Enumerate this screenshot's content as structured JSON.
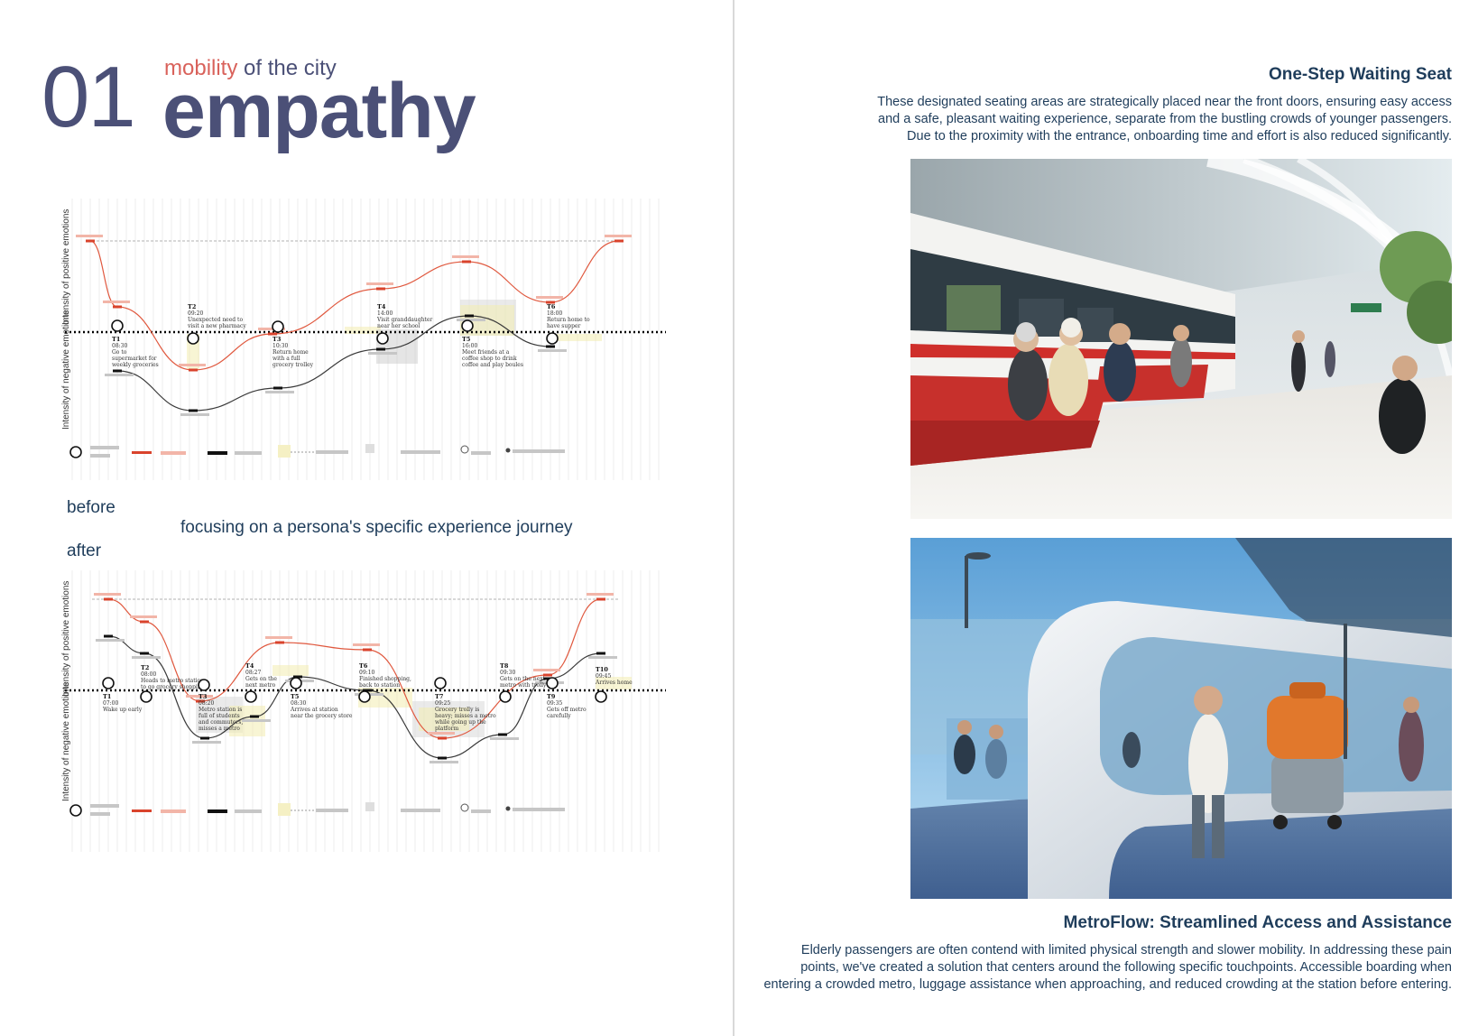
{
  "header": {
    "number": "01",
    "subtitle_highlight": "mobility",
    "subtitle_rest": " of the city",
    "title": "empathy"
  },
  "chart_labels": {
    "y_axis_positive": "Intensity of positive emotions",
    "y_axis_negative": "Intensity of negative emotions",
    "before": "before",
    "focus": "focusing on a persona's specific experience journey",
    "after": "after"
  },
  "chart_data": [
    {
      "type": "line",
      "name": "before",
      "touchpoints": [
        {
          "id": "T1",
          "time": "08:30",
          "text": [
            "Go to",
            "supermarket for",
            "weekly groceries"
          ]
        },
        {
          "id": "T2",
          "time": "09:20",
          "text": [
            "Unexpected need to",
            "visit a new pharmacy"
          ]
        },
        {
          "id": "T3",
          "time": "10:30",
          "text": [
            "Return home",
            "with a full",
            "grocery trolley"
          ]
        },
        {
          "id": "T4",
          "time": "14:00",
          "text": [
            "Visit granddaughter",
            "near her school"
          ]
        },
        {
          "id": "T5",
          "time": "16:00",
          "text": [
            "Meet friends at a",
            "coffee shop to drink",
            "coffee and play boules"
          ]
        },
        {
          "id": "T6",
          "time": "18:00",
          "text": [
            "Return home to",
            "have supper"
          ]
        }
      ]
    },
    {
      "type": "line",
      "name": "after",
      "touchpoints": [
        {
          "id": "T1",
          "time": "07:00",
          "text": [
            "Wake up early"
          ]
        },
        {
          "id": "T2",
          "time": "08:00",
          "text": [
            "Heads to metro station",
            "to go grocery shopping"
          ]
        },
        {
          "id": "T3",
          "time": "08:20",
          "text": [
            "Metro station is",
            "full of students",
            "and commuters,",
            "misses a metro"
          ]
        },
        {
          "id": "T4",
          "time": "08:27",
          "text": [
            "Gets on the",
            "next metro"
          ]
        },
        {
          "id": "T5",
          "time": "08:30",
          "text": [
            "Arrives at station",
            "near the grocery store"
          ]
        },
        {
          "id": "T6",
          "time": "09:10",
          "text": [
            "Finished shopping,",
            "back to station"
          ]
        },
        {
          "id": "T7",
          "time": "09:25",
          "text": [
            "Grocery trolly is",
            "heavy; misses a metro",
            "while going up the",
            "platform"
          ]
        },
        {
          "id": "T8",
          "time": "09:30",
          "text": [
            "Gets on the next",
            "metro with trolly"
          ]
        },
        {
          "id": "T9",
          "time": "09:35",
          "text": [
            "Gets off metro",
            "carefully"
          ]
        },
        {
          "id": "T10",
          "time": "09:45",
          "text": [
            "Arrives home"
          ]
        }
      ]
    }
  ],
  "features": [
    {
      "title": "One-Step Waiting Seat",
      "lines": [
        "These designated seating areas are strategically placed near the front doors, ensuring easy access",
        "and a safe, pleasant waiting experience, separate from the bustling crowds of younger passengers.",
        "Due to the proximity with the entrance, onboarding time and effort is also reduced significantly."
      ]
    },
    {
      "title": "MetroFlow: Streamlined Access and Assistance",
      "lines": [
        "Elderly passengers are often contend with limited physical strength and slower mobility. In addressing these pain",
        "points, we've created a solution that centers around the following specific touchpoints. Accessible boarding when",
        "entering a crowded metro, luggage assistance when approaching, and reduced crowding at the station before entering."
      ]
    }
  ],
  "colors": {
    "accent": "#d9625b",
    "title": "#4b5077",
    "body": "#1f3d5b",
    "positive_line": "#e0583e",
    "negative_line": "#3a3a3a"
  }
}
